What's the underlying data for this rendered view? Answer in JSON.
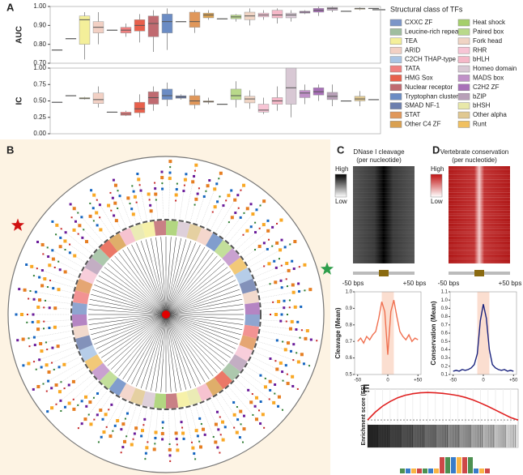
{
  "panels": {
    "a": "A",
    "b": "B",
    "c": "C",
    "d": "D",
    "e": "E"
  },
  "legend": {
    "title": "Structural class of TFs",
    "classes": [
      {
        "name": "CXXC ZF",
        "color": "#7b95c8"
      },
      {
        "name": "Leucine-rich repeat",
        "color": "#9fbe9f"
      },
      {
        "name": "TEA",
        "color": "#f4ef9a"
      },
      {
        "name": "ARID",
        "color": "#f2d0c4"
      },
      {
        "name": "C2CH THAP-type ZF",
        "color": "#a9c4e4"
      },
      {
        "name": "TATA",
        "color": "#f08080"
      },
      {
        "name": "HMG Sox",
        "color": "#e8604c"
      },
      {
        "name": "Nuclear receptor",
        "color": "#c06a70"
      },
      {
        "name": "Tryptophan cluster",
        "color": "#6b8cc4"
      },
      {
        "name": "SMAD NF-1",
        "color": "#6d7fae"
      },
      {
        "name": "STAT",
        "color": "#e0975a"
      },
      {
        "name": "Other C4 ZF",
        "color": "#d9a050"
      },
      {
        "name": "Heat shock",
        "color": "#a5cf6b"
      },
      {
        "name": "Paired box",
        "color": "#b9d98a"
      },
      {
        "name": "Fork head",
        "color": "#f0d4c4"
      },
      {
        "name": "RHR",
        "color": "#f7c5d5"
      },
      {
        "name": "bHLH",
        "color": "#f5b8c8"
      },
      {
        "name": "Homeo domain",
        "color": "#d8c8d4"
      },
      {
        "name": "MADS box",
        "color": "#c090c8"
      },
      {
        "name": "C2H2 ZF",
        "color": "#a870b8"
      },
      {
        "name": "bZIP",
        "color": "#b8a0b8"
      },
      {
        "name": "bHSH",
        "color": "#e8e8a8"
      },
      {
        "name": "Other alpha",
        "color": "#e0c890"
      },
      {
        "name": "Runt",
        "color": "#f0c060"
      }
    ]
  },
  "chart_data": [
    {
      "type": "box",
      "ylabel": "AUC",
      "ylim": [
        0.7,
        1.0
      ],
      "yticks": [
        {
          "value": 0.7,
          "label": "0.70"
        },
        {
          "value": 0.8,
          "label": "0.80"
        },
        {
          "value": 0.9,
          "label": "0.90"
        },
        {
          "value": 1.0,
          "label": "1.00"
        }
      ],
      "boxes": [
        [
          0.77,
          0.77,
          0.77,
          0.77,
          0.77
        ],
        [
          0.83,
          0.83,
          0.83,
          0.83,
          0.83
        ],
        [
          0.72,
          0.8,
          0.93,
          0.95,
          0.97
        ],
        [
          0.8,
          0.86,
          0.89,
          0.92,
          0.97
        ],
        [
          0.875,
          0.875,
          0.875,
          0.875,
          0.875
        ],
        [
          0.84,
          0.86,
          0.875,
          0.89,
          0.91
        ],
        [
          0.81,
          0.87,
          0.9,
          0.93,
          0.96
        ],
        [
          0.76,
          0.84,
          0.91,
          0.95,
          0.98
        ],
        [
          0.77,
          0.86,
          0.92,
          0.96,
          0.99
        ],
        [
          0.92,
          0.92,
          0.92,
          0.92,
          0.92
        ],
        [
          0.86,
          0.89,
          0.92,
          0.97,
          0.98
        ],
        [
          0.93,
          0.94,
          0.955,
          0.965,
          0.98
        ],
        [
          0.935,
          0.935,
          0.935,
          0.935,
          0.935
        ],
        [
          0.92,
          0.935,
          0.945,
          0.955,
          0.96
        ],
        [
          0.9,
          0.93,
          0.95,
          0.97,
          0.99
        ],
        [
          0.93,
          0.945,
          0.955,
          0.965,
          0.98
        ],
        [
          0.91,
          0.94,
          0.955,
          0.98,
          0.99
        ],
        [
          0.92,
          0.94,
          0.955,
          0.965,
          0.98
        ],
        [
          0.96,
          0.965,
          0.97,
          0.975,
          0.98
        ],
        [
          0.95,
          0.97,
          0.98,
          0.99,
          1.0
        ],
        [
          0.97,
          0.98,
          0.99,
          0.995,
          1.0
        ],
        [
          0.975,
          0.975,
          0.975,
          0.975,
          0.975
        ],
        [
          0.98,
          0.985,
          0.99,
          0.99,
          0.995
        ],
        [
          0.99,
          0.99,
          0.99,
          0.99,
          0.99
        ]
      ]
    },
    {
      "type": "box",
      "ylabel": "IC",
      "ylim": [
        0,
        1
      ],
      "yticks": [
        {
          "value": 0,
          "label": "0.00"
        },
        {
          "value": 0.25,
          "label": "0.25"
        },
        {
          "value": 0.5,
          "label": "0.50"
        },
        {
          "value": 0.75,
          "label": "0.75"
        },
        {
          "value": 1,
          "label": "1.00"
        }
      ],
      "boxes": [
        [
          0.48,
          0.48,
          0.48,
          0.48,
          0.48
        ],
        [
          0.58,
          0.58,
          0.58,
          0.58,
          0.58
        ],
        [
          0.52,
          0.53,
          0.54,
          0.55,
          0.56
        ],
        [
          0.4,
          0.46,
          0.52,
          0.62,
          0.72
        ],
        [
          0.33,
          0.33,
          0.33,
          0.33,
          0.33
        ],
        [
          0.27,
          0.28,
          0.3,
          0.33,
          0.35
        ],
        [
          0.25,
          0.32,
          0.38,
          0.48,
          0.6
        ],
        [
          0.35,
          0.45,
          0.55,
          0.64,
          0.72
        ],
        [
          0.42,
          0.52,
          0.58,
          0.68,
          0.78
        ],
        [
          0.52,
          0.54,
          0.56,
          0.58,
          0.6
        ],
        [
          0.38,
          0.44,
          0.5,
          0.58,
          0.68
        ],
        [
          0.45,
          0.48,
          0.49,
          0.5,
          0.55
        ],
        [
          0.45,
          0.45,
          0.45,
          0.45,
          0.45
        ],
        [
          0.4,
          0.52,
          0.58,
          0.68,
          0.8
        ],
        [
          0.38,
          0.47,
          0.53,
          0.57,
          0.66
        ],
        [
          0.3,
          0.33,
          0.36,
          0.45,
          0.55
        ],
        [
          0.35,
          0.45,
          0.5,
          0.55,
          0.72
        ],
        [
          0.25,
          0.45,
          0.7,
          1.0,
          1.0
        ],
        [
          0.45,
          0.55,
          0.62,
          0.66,
          0.75
        ],
        [
          0.5,
          0.59,
          0.64,
          0.7,
          0.75
        ],
        [
          0.42,
          0.52,
          0.57,
          0.63,
          0.75
        ],
        [
          0.5,
          0.5,
          0.5,
          0.5,
          0.5
        ],
        [
          0.42,
          0.5,
          0.53,
          0.57,
          0.65
        ],
        [
          0.52,
          0.52,
          0.52,
          0.52,
          0.52
        ]
      ]
    },
    {
      "type": "line",
      "title": [
        "DNase I cleavage",
        "(per nucleotide)"
      ],
      "heatmap": "gray",
      "high": "High",
      "low": "Low",
      "left": "-50 bps",
      "right": "+50 bps",
      "ylabel": "Cleavage (Mean)",
      "color": "#f07050",
      "band": [
        -10,
        10
      ],
      "x": [
        -50,
        -45,
        -40,
        -35,
        -30,
        -25,
        -20,
        -15,
        -10,
        -5,
        0,
        5,
        10,
        15,
        20,
        25,
        30,
        35,
        40,
        45,
        50
      ],
      "values": [
        0.7,
        0.72,
        0.69,
        0.73,
        0.71,
        0.74,
        0.76,
        0.84,
        0.94,
        0.88,
        0.62,
        0.88,
        0.95,
        0.85,
        0.76,
        0.73,
        0.71,
        0.74,
        0.7,
        0.72,
        0.71
      ],
      "xlim": [
        -55,
        55
      ],
      "xticks": [
        -50,
        0,
        {
          "value": 50,
          "label": "+50"
        }
      ],
      "ylim": [
        0.5,
        1.0
      ],
      "yticks": [
        0.5,
        0.6,
        0.7,
        0.8,
        0.9,
        {
          "value": 1.0,
          "label": "1.0"
        }
      ]
    },
    {
      "type": "line",
      "title": [
        "Vertebrate conservation",
        "(per nucleotide)"
      ],
      "heatmap": "red",
      "high": "High",
      "low": "Low",
      "left": "-50 bps",
      "right": "+50 bps",
      "ylabel": "Conservation (Mean)",
      "color": "#1a237e",
      "band": [
        -10,
        10
      ],
      "x": [
        -50,
        -45,
        -40,
        -35,
        -30,
        -25,
        -20,
        -15,
        -10,
        -5,
        0,
        5,
        10,
        15,
        20,
        25,
        30,
        35,
        40,
        45,
        50
      ],
      "values": [
        0.14,
        0.15,
        0.14,
        0.16,
        0.15,
        0.16,
        0.18,
        0.22,
        0.35,
        0.75,
        0.95,
        0.78,
        0.4,
        0.22,
        0.18,
        0.16,
        0.15,
        0.16,
        0.14,
        0.15,
        0.14
      ],
      "xlim": [
        -55,
        55
      ],
      "xticks": [
        -50,
        0,
        {
          "value": 50,
          "label": "+50"
        }
      ],
      "ylim": [
        0.1,
        1.1
      ],
      "yticks": [
        0.1,
        0.2,
        0.3,
        0.4,
        0.5,
        0.6,
        0.7,
        0.8,
        0.9,
        {
          "value": 1.0,
          "label": "1.0"
        },
        {
          "value": 1.1,
          "label": "1.1"
        }
      ]
    },
    {
      "type": "es",
      "ylabel": "Enrichment score (ES)",
      "color": "#e02020",
      "ylim": [
        -0.1,
        1
      ],
      "values": [
        0,
        0.25,
        0.45,
        0.6,
        0.72,
        0.8,
        0.85,
        0.88,
        0.89,
        0.88,
        0.86,
        0.83,
        0.79,
        0.73,
        0.65,
        0.55,
        0.44,
        0.32,
        0.2,
        0.08,
        0
      ]
    }
  ]
}
